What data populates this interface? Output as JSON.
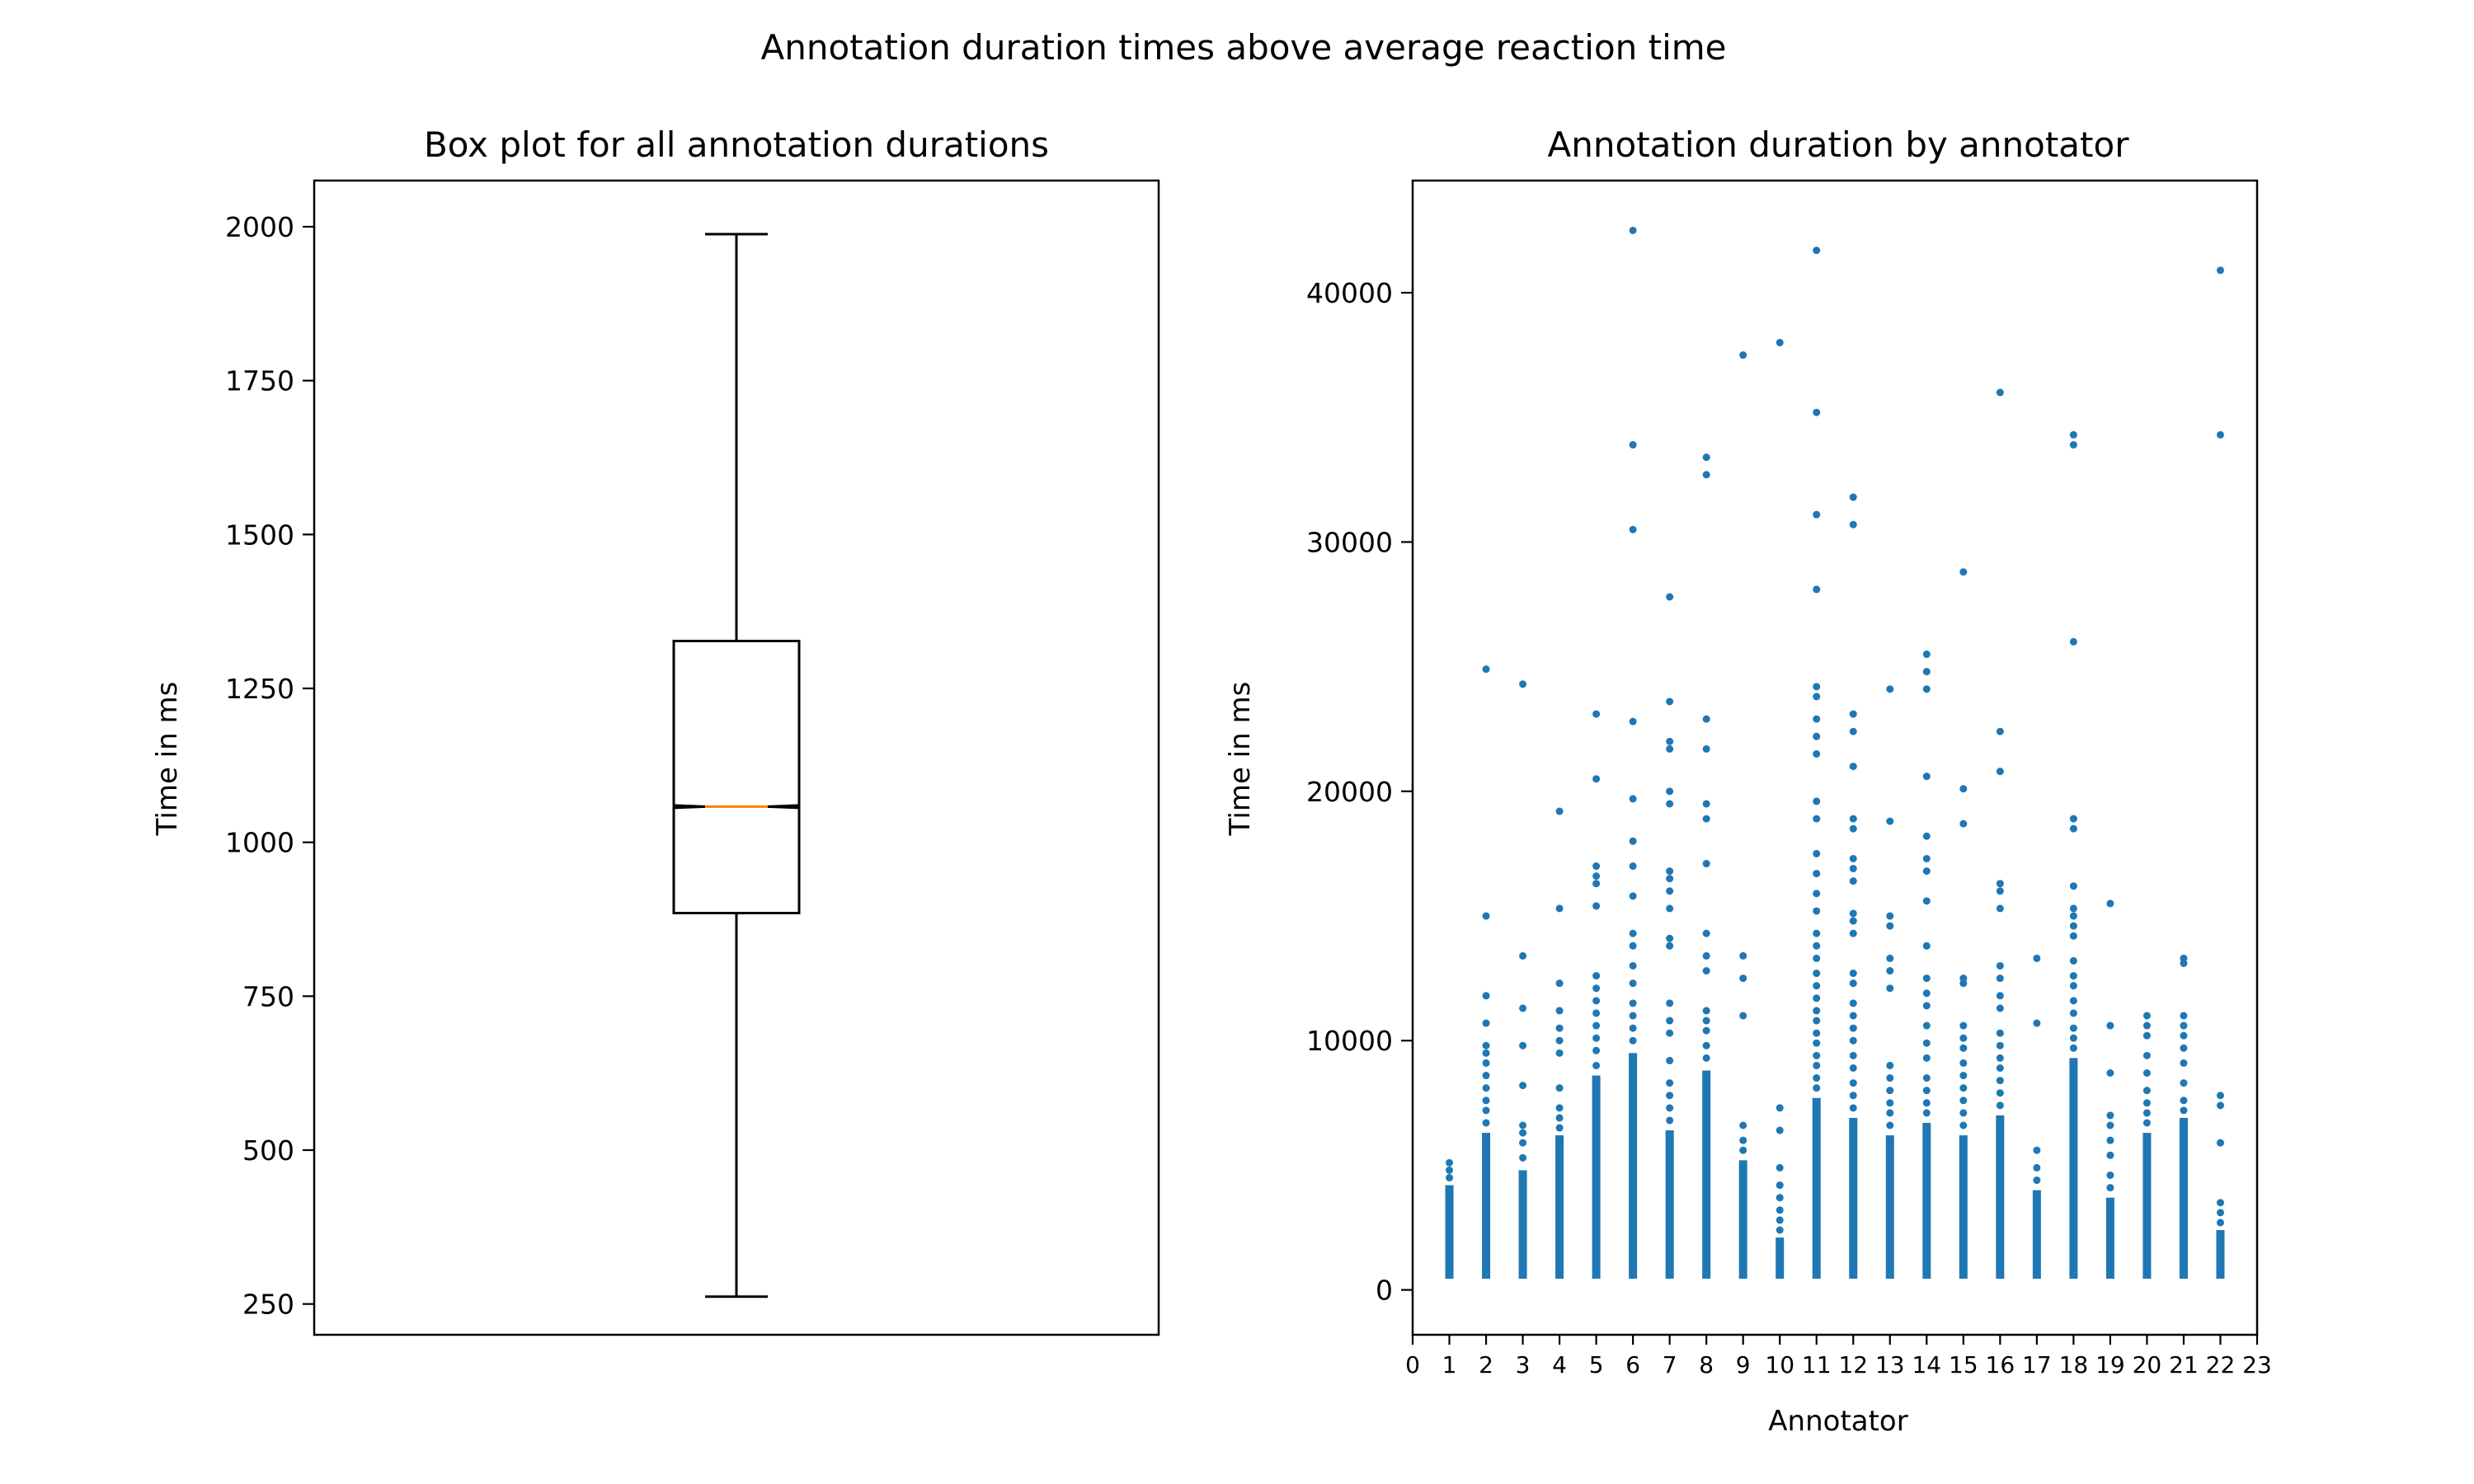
{
  "figure": {
    "suptitle": "Annotation duration times above average reaction time"
  },
  "chart_data": [
    {
      "type": "box",
      "title": "Box plot for all annotation durations",
      "xlabel": "",
      "ylabel": "Time in ms",
      "ylim": [
        200,
        2075
      ],
      "yticks": [
        250,
        500,
        750,
        1000,
        1250,
        1500,
        1750,
        2000
      ],
      "box": {
        "whisker_low": 262,
        "q1": 885,
        "median": 1058,
        "q3": 1327,
        "whisker_high": 1988,
        "notched": true
      },
      "colors": {
        "box": "#000000",
        "median": "#ff7f0e"
      },
      "grid": false
    },
    {
      "type": "scatter",
      "title": "Annotation duration by annotator",
      "xlabel": "Annotator",
      "ylabel": "Time in ms",
      "xlim": [
        0,
        23
      ],
      "ylim": [
        -1800,
        44500
      ],
      "xticks": [
        0,
        1,
        2,
        3,
        4,
        5,
        6,
        7,
        8,
        9,
        10,
        11,
        12,
        13,
        14,
        15,
        16,
        17,
        18,
        19,
        20,
        21,
        22,
        23
      ],
      "yticks": [
        0,
        10000,
        20000,
        30000,
        40000
      ],
      "color": "#1f77b4",
      "grid": false,
      "series": [
        {
          "x": 1,
          "dense_max": 4200,
          "points": [
            4500,
            4800,
            5100
          ]
        },
        {
          "x": 2,
          "dense_max": 6300,
          "points": [
            6700,
            7200,
            7600,
            8100,
            8600,
            9100,
            9500,
            9800,
            10700,
            11800,
            15000,
            24900
          ]
        },
        {
          "x": 3,
          "dense_max": 4800,
          "points": [
            5300,
            5900,
            6300,
            6600,
            8200,
            9800,
            11300,
            13400,
            24300
          ]
        },
        {
          "x": 4,
          "dense_max": 6200,
          "points": [
            6500,
            6900,
            7300,
            8100,
            9500,
            10000,
            10500,
            11200,
            12300,
            15300,
            19200
          ]
        },
        {
          "x": 5,
          "dense_max": 8600,
          "points": [
            9000,
            9600,
            10100,
            10600,
            11100,
            11600,
            12100,
            12600,
            15400,
            16300,
            16600,
            17000,
            20500,
            23100
          ]
        },
        {
          "x": 6,
          "dense_max": 9500,
          "points": [
            10000,
            10500,
            11000,
            11500,
            12300,
            13000,
            13800,
            14300,
            15800,
            17000,
            18000,
            19700,
            22800,
            30500,
            33900,
            42500
          ]
        },
        {
          "x": 7,
          "dense_max": 6400,
          "points": [
            6800,
            7300,
            7800,
            8300,
            9200,
            10300,
            10800,
            11500,
            13800,
            14100,
            15300,
            16000,
            16500,
            16800,
            19500,
            20000,
            21700,
            22000,
            23600,
            27800
          ]
        },
        {
          "x": 8,
          "dense_max": 8800,
          "points": [
            9300,
            9800,
            10400,
            10800,
            11200,
            12800,
            13400,
            14300,
            17100,
            18900,
            19500,
            21700,
            22900,
            32700,
            33400
          ]
        },
        {
          "x": 9,
          "dense_max": 5200,
          "points": [
            5600,
            6000,
            6600,
            11000,
            12500,
            13400,
            37500
          ]
        },
        {
          "x": 10,
          "dense_max": 2100,
          "points": [
            2400,
            2800,
            3200,
            3700,
            4200,
            4900,
            6400,
            7300,
            38000
          ]
        },
        {
          "x": 11,
          "dense_max": 7700,
          "points": [
            8100,
            8500,
            9000,
            9400,
            9900,
            10300,
            10800,
            11200,
            11700,
            12200,
            12700,
            13300,
            13800,
            14300,
            15200,
            15900,
            16700,
            17500,
            18900,
            19600,
            21500,
            22200,
            22900,
            23800,
            24200,
            28100,
            31100,
            35200,
            41700
          ]
        },
        {
          "x": 12,
          "dense_max": 6900,
          "points": [
            7300,
            7800,
            8300,
            8900,
            9400,
            10000,
            10500,
            11000,
            11500,
            12300,
            12700,
            14300,
            14800,
            15100,
            16400,
            16900,
            17300,
            18500,
            18900,
            21000,
            22400,
            23100,
            30700,
            31800
          ]
        },
        {
          "x": 13,
          "dense_max": 6200,
          "points": [
            6600,
            7100,
            7500,
            8000,
            8500,
            9000,
            12100,
            12800,
            13300,
            14600,
            15000,
            18800,
            24100
          ]
        },
        {
          "x": 14,
          "dense_max": 6700,
          "points": [
            7100,
            7500,
            8000,
            8500,
            9300,
            9900,
            10600,
            11400,
            11900,
            12500,
            13800,
            15600,
            16800,
            17300,
            18200,
            20600,
            24100,
            24800,
            25500
          ]
        },
        {
          "x": 15,
          "dense_max": 6200,
          "points": [
            6600,
            7100,
            7600,
            8100,
            8600,
            9100,
            9700,
            10100,
            10600,
            12300,
            12500,
            18700,
            20100,
            28800
          ]
        },
        {
          "x": 16,
          "dense_max": 7000,
          "points": [
            7400,
            7900,
            8400,
            8900,
            9300,
            9800,
            10300,
            11300,
            11800,
            12500,
            13000,
            15300,
            16000,
            16300,
            20800,
            22400,
            36000
          ]
        },
        {
          "x": 17,
          "dense_max": 4000,
          "points": [
            4400,
            4900,
            5600,
            10700,
            13300
          ]
        },
        {
          "x": 18,
          "dense_max": 9300,
          "points": [
            9700,
            10100,
            10500,
            11100,
            11600,
            12200,
            12600,
            13200,
            14200,
            14600,
            15000,
            15300,
            16200,
            18500,
            18900,
            26000,
            33900,
            34300
          ]
        },
        {
          "x": 19,
          "dense_max": 3700,
          "points": [
            4100,
            4600,
            5400,
            6000,
            6600,
            7000,
            8700,
            10600,
            15500
          ]
        },
        {
          "x": 20,
          "dense_max": 6300,
          "points": [
            6700,
            7100,
            7500,
            8000,
            8700,
            9400,
            10200,
            10600,
            11000
          ]
        },
        {
          "x": 21,
          "dense_max": 6900,
          "points": [
            7200,
            7600,
            8300,
            9100,
            9700,
            10200,
            10600,
            11000,
            13100,
            13300
          ]
        },
        {
          "x": 22,
          "dense_max": 2400,
          "points": [
            2700,
            3100,
            3500,
            5900,
            7400,
            7800,
            34300,
            40900
          ]
        }
      ]
    }
  ]
}
